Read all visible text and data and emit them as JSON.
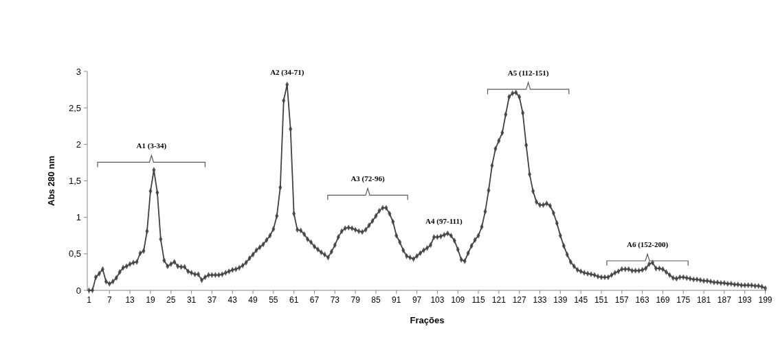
{
  "chart_data": {
    "type": "line",
    "xlabel": "Frações",
    "ylabel": "Abs 280 nm",
    "marker": "diamond",
    "line_style": "solid",
    "grid": false,
    "xlim": [
      0.5,
      199.5
    ],
    "ylim": [
      0,
      3
    ],
    "xticks": [
      1,
      7,
      13,
      19,
      25,
      31,
      37,
      43,
      49,
      55,
      61,
      67,
      73,
      79,
      85,
      91,
      97,
      103,
      109,
      115,
      121,
      127,
      133,
      139,
      145,
      151,
      157,
      163,
      169,
      175,
      181,
      187,
      193,
      199
    ],
    "yticks": [
      0,
      {
        "value": 0.5,
        "label": "0,5"
      },
      1,
      {
        "value": 1.5,
        "label": "1,5"
      },
      2,
      {
        "value": 2.5,
        "label": "2,5"
      },
      3
    ],
    "x": [
      1,
      2,
      3,
      4,
      5,
      6,
      7,
      8,
      9,
      10,
      11,
      12,
      13,
      14,
      15,
      16,
      17,
      18,
      19,
      20,
      21,
      22,
      23,
      24,
      25,
      26,
      27,
      28,
      29,
      30,
      31,
      32,
      33,
      34,
      35,
      36,
      37,
      38,
      39,
      40,
      41,
      42,
      43,
      44,
      45,
      46,
      47,
      48,
      49,
      50,
      51,
      52,
      53,
      54,
      55,
      56,
      57,
      58,
      59,
      60,
      61,
      62,
      63,
      64,
      65,
      66,
      67,
      68,
      69,
      70,
      71,
      72,
      73,
      74,
      75,
      76,
      77,
      78,
      79,
      80,
      81,
      82,
      83,
      84,
      85,
      86,
      87,
      88,
      89,
      90,
      91,
      92,
      93,
      94,
      95,
      96,
      97,
      98,
      99,
      100,
      101,
      102,
      103,
      104,
      105,
      106,
      107,
      108,
      109,
      110,
      111,
      112,
      113,
      114,
      115,
      116,
      117,
      118,
      119,
      120,
      121,
      122,
      123,
      124,
      125,
      126,
      127,
      128,
      129,
      130,
      131,
      132,
      133,
      134,
      135,
      136,
      137,
      138,
      139,
      140,
      141,
      142,
      143,
      144,
      145,
      146,
      147,
      148,
      149,
      150,
      151,
      152,
      153,
      154,
      155,
      156,
      157,
      158,
      159,
      160,
      161,
      162,
      163,
      164,
      165,
      166,
      167,
      168,
      169,
      170,
      171,
      172,
      173,
      174,
      175,
      176,
      177,
      178,
      179,
      180,
      181,
      182,
      183,
      184,
      185,
      186,
      187,
      188,
      189,
      190,
      191,
      192,
      193,
      194,
      195,
      196,
      197,
      198,
      199
    ],
    "series": [
      {
        "color": "#404040",
        "values": [
          0,
          0,
          0.18,
          0.23,
          0.29,
          0.12,
          0.09,
          0.12,
          0.17,
          0.25,
          0.31,
          0.33,
          0.36,
          0.38,
          0.39,
          0.51,
          0.54,
          0.81,
          1.36,
          1.65,
          1.34,
          0.7,
          0.41,
          0.33,
          0.36,
          0.39,
          0.33,
          0.32,
          0.32,
          0.26,
          0.24,
          0.22,
          0.22,
          0.14,
          0.18,
          0.21,
          0.21,
          0.21,
          0.21,
          0.22,
          0.24,
          0.26,
          0.28,
          0.29,
          0.31,
          0.34,
          0.38,
          0.44,
          0.49,
          0.55,
          0.59,
          0.63,
          0.69,
          0.75,
          0.84,
          1.02,
          1.41,
          2.6,
          2.82,
          2.21,
          1.05,
          0.83,
          0.82,
          0.77,
          0.7,
          0.66,
          0.6,
          0.56,
          0.52,
          0.49,
          0.45,
          0.53,
          0.62,
          0.73,
          0.81,
          0.85,
          0.86,
          0.85,
          0.83,
          0.81,
          0.8,
          0.83,
          0.89,
          0.95,
          1.02,
          1.09,
          1.13,
          1.13,
          1.05,
          0.94,
          0.75,
          0.66,
          0.55,
          0.47,
          0.45,
          0.43,
          0.47,
          0.51,
          0.55,
          0.58,
          0.62,
          0.73,
          0.73,
          0.74,
          0.76,
          0.78,
          0.75,
          0.68,
          0.56,
          0.42,
          0.4,
          0.51,
          0.61,
          0.69,
          0.75,
          0.87,
          1.08,
          1.37,
          1.71,
          1.94,
          2.05,
          2.16,
          2.41,
          2.65,
          2.7,
          2.71,
          2.65,
          2.43,
          1.99,
          1.59,
          1.36,
          1.21,
          1.17,
          1.17,
          1.19,
          1.16,
          1.06,
          0.92,
          0.75,
          0.61,
          0.49,
          0.39,
          0.33,
          0.28,
          0.26,
          0.24,
          0.23,
          0.22,
          0.21,
          0.19,
          0.18,
          0.18,
          0.18,
          0.21,
          0.24,
          0.26,
          0.29,
          0.29,
          0.29,
          0.27,
          0.27,
          0.27,
          0.28,
          0.3,
          0.36,
          0.38,
          0.3,
          0.3,
          0.29,
          0.25,
          0.21,
          0.17,
          0.16,
          0.18,
          0.18,
          0.17,
          0.16,
          0.15,
          0.15,
          0.14,
          0.13,
          0.13,
          0.12,
          0.11,
          0.11,
          0.1,
          0.1,
          0.09,
          0.09,
          0.08,
          0.08,
          0.07,
          0.07,
          0.07,
          0.07,
          0.06,
          0.06,
          0.05,
          0.03
        ]
      }
    ],
    "annotations": [
      "A1 (3-34)",
      "A2 (34-71)",
      "A3 (72-96)",
      "A4 (97-111)",
      "A5 (112-151)",
      "A6 (152-200)"
    ]
  }
}
